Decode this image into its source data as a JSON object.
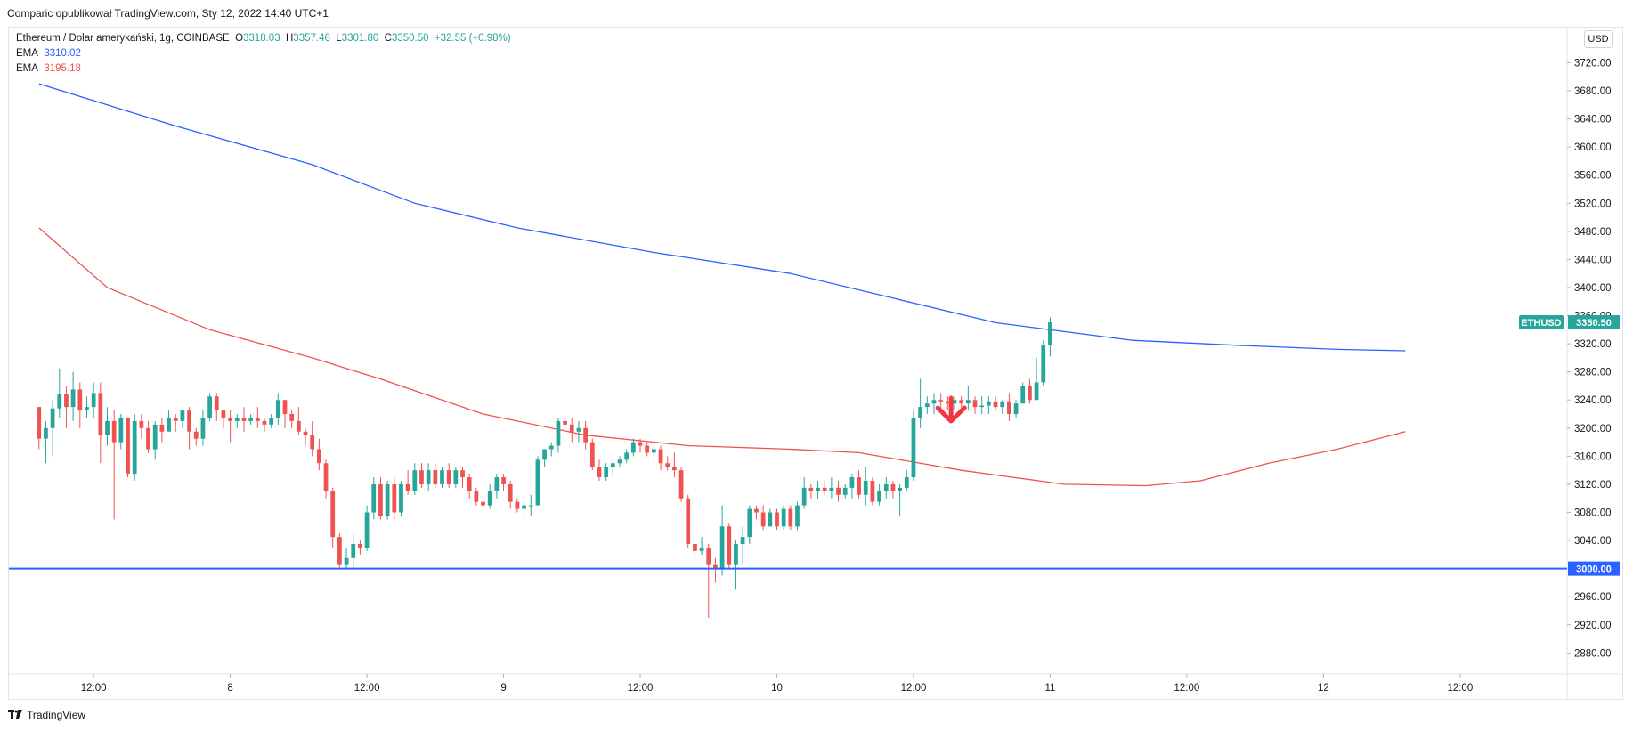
{
  "header": {
    "publisher_line": "Comparic opublikował TradingView.com, Sty 12, 2022 14:40 UTC+1"
  },
  "legend": {
    "symbol": "Ethereum / Dolar amerykański, 1g, COINBASE",
    "o_label": "O",
    "o_value": "3318.03",
    "h_label": "H",
    "h_value": "3357.46",
    "l_label": "L",
    "l_value": "3301.80",
    "c_label": "C",
    "c_value": "3350.50",
    "change": "+32.55 (+0.98%)",
    "ema1_label": "EMA",
    "ema1_value": "3310.02",
    "ema2_label": "EMA",
    "ema2_value": "3195.18"
  },
  "currency_button": "USD",
  "price_badge": {
    "symbol": "ETHUSD",
    "value": "3350.50"
  },
  "line_badge": {
    "value": "3000.00"
  },
  "footer": {
    "logo_text": "TradingView"
  },
  "colors": {
    "up": "#26a69a",
    "down": "#ef5350",
    "ema_slow": "#2962ff",
    "ema_fast": "#ef5350",
    "hline": "#2962ff",
    "grid": "#f0f3fa",
    "border": "#e0e3eb"
  },
  "chart_data": {
    "type": "candlestick",
    "y_axis": {
      "ticks": [
        2880,
        2920,
        2960,
        3040,
        3080,
        3120,
        3160,
        3200,
        3240,
        3280,
        3320,
        3360,
        3400,
        3440,
        3480,
        3520,
        3560,
        3600,
        3640,
        3680,
        3720
      ],
      "tick_labels": [
        "2880.00",
        "2920.00",
        "2960.00",
        "3040.00",
        "3080.00",
        "3120.00",
        "3160.00",
        "3200.00",
        "3240.00",
        "3280.00",
        "3320.00",
        "3360.00",
        "3400.00",
        "3440.00",
        "3480.00",
        "3520.00",
        "3560.00",
        "3600.00",
        "3640.00",
        "3680.00",
        "3720.00"
      ],
      "range": [
        2850,
        3770
      ]
    },
    "x_axis": {
      "tick_labels": [
        "12:00",
        "8",
        "12:00",
        "9",
        "12:00",
        "10",
        "12:00",
        "11",
        "12:00",
        "12",
        "12:00"
      ],
      "tick_bar_index": [
        8,
        28,
        48,
        68,
        88,
        108,
        128,
        148,
        168,
        188,
        208
      ],
      "bar_range": [
        -4.4,
        223.4
      ]
    },
    "candles": [
      [
        3230,
        3185,
        3225,
        3170
      ],
      [
        3185,
        3200,
        3210,
        3150
      ],
      [
        3200,
        3228,
        3240,
        3160
      ],
      [
        3228,
        3248,
        3285,
        3215
      ],
      [
        3248,
        3230,
        3260,
        3200
      ],
      [
        3230,
        3255,
        3280,
        3210
      ],
      [
        3255,
        3225,
        3265,
        3200
      ],
      [
        3225,
        3230,
        3245,
        3215
      ],
      [
        3230,
        3250,
        3265,
        3215
      ],
      [
        3250,
        3190,
        3265,
        3150
      ],
      [
        3190,
        3210,
        3230,
        3175
      ],
      [
        3210,
        3180,
        3225,
        3070
      ],
      [
        3180,
        3215,
        3220,
        3170
      ],
      [
        3215,
        3135,
        3215,
        3130
      ],
      [
        3135,
        3210,
        3220,
        3125
      ],
      [
        3210,
        3200,
        3220,
        3185
      ],
      [
        3200,
        3170,
        3210,
        3165
      ],
      [
        3170,
        3205,
        3210,
        3155
      ],
      [
        3205,
        3195,
        3215,
        3180
      ],
      [
        3195,
        3215,
        3225,
        3195
      ],
      [
        3215,
        3210,
        3220,
        3195
      ],
      [
        3210,
        3225,
        3225,
        3200
      ],
      [
        3225,
        3195,
        3230,
        3170
      ],
      [
        3195,
        3185,
        3200,
        3175
      ],
      [
        3185,
        3215,
        3225,
        3175
      ],
      [
        3215,
        3245,
        3250,
        3210
      ],
      [
        3245,
        3225,
        3250,
        3210
      ],
      [
        3225,
        3215,
        3225,
        3200
      ],
      [
        3215,
        3210,
        3225,
        3180
      ],
      [
        3210,
        3215,
        3220,
        3200
      ],
      [
        3215,
        3210,
        3230,
        3195
      ],
      [
        3210,
        3215,
        3220,
        3205
      ],
      [
        3215,
        3210,
        3230,
        3200
      ],
      [
        3210,
        3205,
        3215,
        3195
      ],
      [
        3205,
        3215,
        3220,
        3200
      ],
      [
        3215,
        3240,
        3250,
        3205
      ],
      [
        3240,
        3220,
        3240,
        3200
      ],
      [
        3220,
        3210,
        3225,
        3200
      ],
      [
        3210,
        3195,
        3230,
        3190
      ],
      [
        3195,
        3190,
        3200,
        3175
      ],
      [
        3190,
        3170,
        3210,
        3160
      ],
      [
        3170,
        3150,
        3185,
        3140
      ],
      [
        3150,
        3110,
        3155,
        3100
      ],
      [
        3110,
        3045,
        3115,
        3030
      ],
      [
        3045,
        3005,
        3050,
        3000
      ],
      [
        3005,
        3015,
        3030,
        3000
      ],
      [
        3015,
        3035,
        3050,
        3000
      ],
      [
        3035,
        3030,
        3040,
        3020
      ],
      [
        3030,
        3080,
        3090,
        3025
      ],
      [
        3080,
        3120,
        3130,
        3070
      ],
      [
        3120,
        3075,
        3130,
        3070
      ],
      [
        3075,
        3120,
        3125,
        3070
      ],
      [
        3120,
        3080,
        3130,
        3070
      ],
      [
        3080,
        3120,
        3125,
        3075
      ],
      [
        3120,
        3110,
        3140,
        3105
      ],
      [
        3110,
        3140,
        3150,
        3105
      ],
      [
        3140,
        3120,
        3150,
        3115
      ],
      [
        3120,
        3140,
        3150,
        3110
      ],
      [
        3140,
        3120,
        3150,
        3115
      ],
      [
        3120,
        3140,
        3145,
        3115
      ],
      [
        3140,
        3120,
        3150,
        3115
      ],
      [
        3120,
        3140,
        3145,
        3115
      ],
      [
        3140,
        3130,
        3145,
        3115
      ],
      [
        3130,
        3110,
        3135,
        3100
      ],
      [
        3110,
        3095,
        3115,
        3090
      ],
      [
        3095,
        3090,
        3100,
        3080
      ],
      [
        3090,
        3110,
        3120,
        3085
      ],
      [
        3110,
        3130,
        3135,
        3100
      ],
      [
        3130,
        3120,
        3135,
        3110
      ],
      [
        3120,
        3095,
        3125,
        3085
      ],
      [
        3095,
        3085,
        3100,
        3080
      ],
      [
        3085,
        3090,
        3100,
        3075
      ],
      [
        3090,
        3090,
        3105,
        3075
      ],
      [
        3090,
        3155,
        3160,
        3090
      ],
      [
        3155,
        3170,
        3170,
        3145
      ],
      [
        3170,
        3175,
        3180,
        3160
      ],
      [
        3175,
        3210,
        3215,
        3165
      ],
      [
        3210,
        3205,
        3215,
        3200
      ],
      [
        3205,
        3195,
        3215,
        3180
      ],
      [
        3195,
        3200,
        3210,
        3180
      ],
      [
        3200,
        3180,
        3210,
        3170
      ],
      [
        3180,
        3145,
        3185,
        3140
      ],
      [
        3145,
        3130,
        3155,
        3125
      ],
      [
        3130,
        3145,
        3150,
        3125
      ],
      [
        3145,
        3150,
        3155,
        3130
      ],
      [
        3150,
        3155,
        3160,
        3145
      ],
      [
        3155,
        3165,
        3170,
        3150
      ],
      [
        3165,
        3180,
        3185,
        3160
      ],
      [
        3180,
        3175,
        3185,
        3165
      ],
      [
        3175,
        3165,
        3180,
        3160
      ],
      [
        3165,
        3170,
        3175,
        3155
      ],
      [
        3170,
        3150,
        3175,
        3140
      ],
      [
        3150,
        3145,
        3160,
        3140
      ],
      [
        3145,
        3140,
        3165,
        3130
      ],
      [
        3140,
        3100,
        3145,
        3095
      ],
      [
        3100,
        3035,
        3105,
        3030
      ],
      [
        3035,
        3025,
        3040,
        3010
      ],
      [
        3025,
        3030,
        3045,
        3020
      ],
      [
        3030,
        3005,
        3035,
        2930
      ],
      [
        3005,
        3000,
        3015,
        2980
      ],
      [
        3000,
        3060,
        3090,
        2990
      ],
      [
        3060,
        3005,
        3065,
        3000
      ],
      [
        3005,
        3035,
        3040,
        2970
      ],
      [
        3035,
        3045,
        3060,
        3005
      ],
      [
        3045,
        3085,
        3090,
        3035
      ],
      [
        3085,
        3080,
        3090,
        3070
      ],
      [
        3080,
        3060,
        3090,
        3055
      ],
      [
        3060,
        3080,
        3085,
        3060
      ],
      [
        3080,
        3060,
        3085,
        3055
      ],
      [
        3060,
        3085,
        3090,
        3055
      ],
      [
        3085,
        3060,
        3090,
        3055
      ],
      [
        3060,
        3090,
        3095,
        3055
      ],
      [
        3090,
        3115,
        3130,
        3085
      ],
      [
        3115,
        3110,
        3120,
        3100
      ],
      [
        3110,
        3115,
        3125,
        3100
      ],
      [
        3115,
        3110,
        3125,
        3105
      ],
      [
        3110,
        3115,
        3130,
        3100
      ],
      [
        3115,
        3105,
        3125,
        3095
      ],
      [
        3105,
        3115,
        3120,
        3100
      ],
      [
        3115,
        3130,
        3135,
        3100
      ],
      [
        3130,
        3105,
        3140,
        3100
      ],
      [
        3105,
        3125,
        3145,
        3090
      ],
      [
        3125,
        3095,
        3130,
        3090
      ],
      [
        3095,
        3110,
        3120,
        3090
      ],
      [
        3110,
        3120,
        3130,
        3100
      ],
      [
        3120,
        3110,
        3125,
        3100
      ],
      [
        3110,
        3115,
        3120,
        3075
      ],
      [
        3115,
        3130,
        3140,
        3110
      ],
      [
        3130,
        3215,
        3225,
        3125
      ],
      [
        3215,
        3230,
        3270,
        3200
      ],
      [
        3230,
        3235,
        3245,
        3220
      ],
      [
        3235,
        3240,
        3250,
        3220
      ],
      [
        3240,
        3238,
        3250,
        3225
      ],
      [
        3238,
        3235,
        3245,
        3225
      ],
      [
        3235,
        3240,
        3245,
        3225
      ],
      [
        3240,
        3235,
        3245,
        3225
      ],
      [
        3235,
        3240,
        3260,
        3225
      ],
      [
        3240,
        3230,
        3245,
        3220
      ],
      [
        3230,
        3232,
        3245,
        3220
      ],
      [
        3232,
        3238,
        3245,
        3220
      ],
      [
        3238,
        3230,
        3245,
        3225
      ],
      [
        3230,
        3238,
        3240,
        3220
      ],
      [
        3238,
        3220,
        3250,
        3210
      ],
      [
        3220,
        3235,
        3240,
        3215
      ],
      [
        3235,
        3260,
        3265,
        3235
      ],
      [
        3260,
        3240,
        3270,
        3235
      ],
      [
        3240,
        3265,
        3300,
        3240
      ],
      [
        3265,
        3318,
        3325,
        3260
      ],
      [
        3318,
        3350.5,
        3357.46,
        3301.8
      ]
    ],
    "ema_slow": {
      "name": "EMA",
      "points": [
        [
          0,
          3690
        ],
        [
          20,
          3630
        ],
        [
          40,
          3575
        ],
        [
          55,
          3520
        ],
        [
          70,
          3485
        ],
        [
          90,
          3450
        ],
        [
          110,
          3420
        ],
        [
          125,
          3385
        ],
        [
          140,
          3350
        ],
        [
          160,
          3325
        ],
        [
          175,
          3318
        ],
        [
          190,
          3312
        ],
        [
          200,
          3310
        ]
      ]
    },
    "ema_fast": {
      "name": "EMA",
      "points": [
        [
          0,
          3485
        ],
        [
          10,
          3400
        ],
        [
          25,
          3340
        ],
        [
          40,
          3300
        ],
        [
          50,
          3270
        ],
        [
          65,
          3220
        ],
        [
          80,
          3190
        ],
        [
          95,
          3175
        ],
        [
          110,
          3170
        ],
        [
          120,
          3165
        ],
        [
          135,
          3140
        ],
        [
          150,
          3120
        ],
        [
          162,
          3118
        ],
        [
          170,
          3125
        ],
        [
          180,
          3150
        ],
        [
          190,
          3170
        ],
        [
          200,
          3195
        ]
      ]
    },
    "horizontal_line": 3000,
    "annotation": {
      "type": "arrow-down",
      "bar": 133.5,
      "price": 3215
    }
  }
}
